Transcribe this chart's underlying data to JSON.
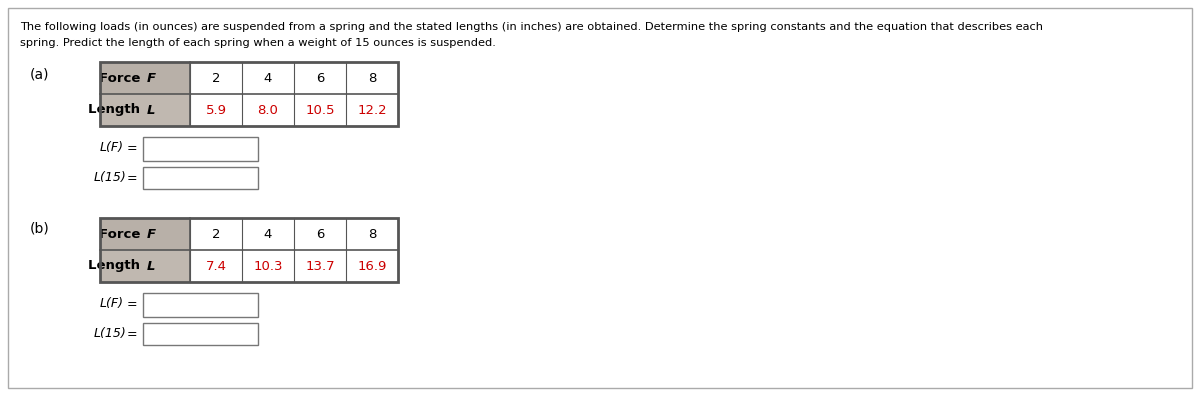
{
  "title_text_line1": "The following loads (in ounces) are suspended from a spring and the stated lengths (in inches) are obtained. Determine the spring constants and the equation that describes each",
  "title_text_line2": "spring. Predict the length of each spring when a weight of 15 ounces is suspended.",
  "part_a_label": "(a)",
  "part_b_label": "(b)",
  "force_values": [
    "2",
    "4",
    "6",
    "8"
  ],
  "length_a_values": [
    "5.9",
    "8.0",
    "10.5",
    "12.2"
  ],
  "length_b_values": [
    "7.4",
    "10.3",
    "13.7",
    "16.9"
  ],
  "header_bg": "#b8b0a8",
  "row_label_bg": "#c0b8b0",
  "data_color": "#cc0000",
  "force_color": "#000000",
  "border_color": "#555555",
  "outer_border_color": "#555555",
  "background": "#ffffff",
  "page_border": "#aaaaaa"
}
